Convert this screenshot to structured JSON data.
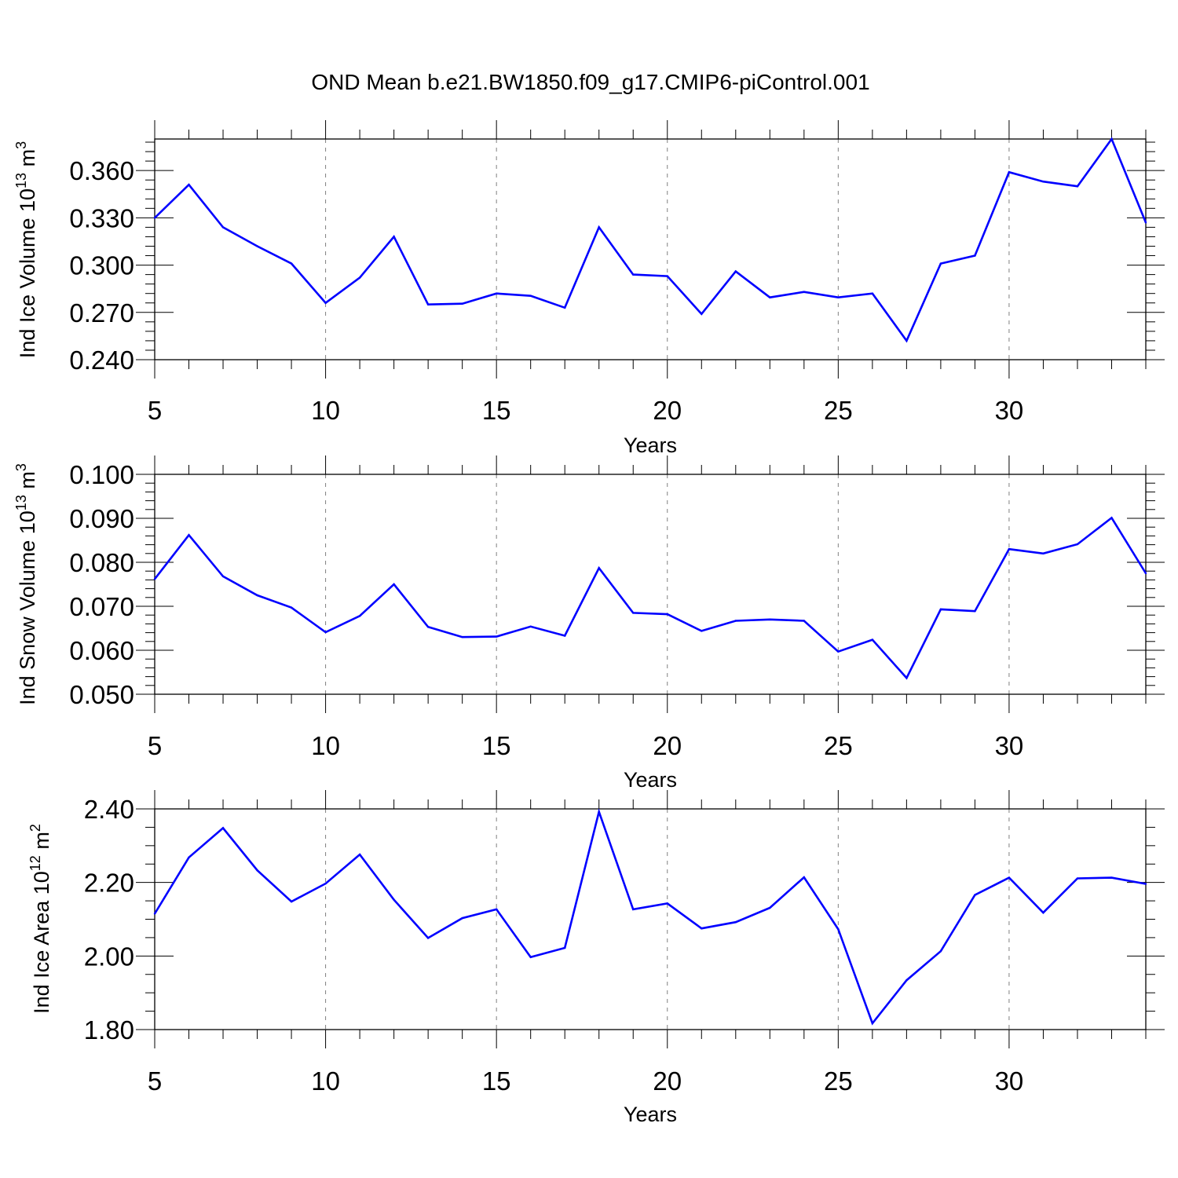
{
  "title": "OND Mean b.e21.BW1850.f09_g17.CMIP6-piControl.001",
  "colors": {
    "series": "#0000ff",
    "axis": "#000000",
    "grid": "#808080"
  },
  "chart_data": [
    {
      "type": "line",
      "xlabel": "Years",
      "ylabel_main": "Ind Ice Volume 10",
      "ylabel_exp": "13",
      "ylabel_unit": " m",
      "ylabel_unit_exp": "3",
      "xlim": [
        5,
        34
      ],
      "ylim": [
        0.24,
        0.38
      ],
      "xticks": [
        5,
        10,
        15,
        20,
        25,
        30
      ],
      "xtick_labels": [
        "5",
        "10",
        "15",
        "20",
        "25",
        "30"
      ],
      "yticks": [
        0.24,
        0.27,
        0.3,
        0.33,
        0.36
      ],
      "ytick_labels": [
        "0.240",
        "0.270",
        "0.300",
        "0.330",
        "0.360"
      ],
      "yminor_step": 0.006,
      "grid": "vertical dashed at major x ticks",
      "x": [
        5,
        6,
        7,
        8,
        9,
        10,
        11,
        12,
        13,
        14,
        15,
        16,
        17,
        18,
        19,
        20,
        21,
        22,
        23,
        24,
        25,
        26,
        27,
        28,
        29,
        30,
        31,
        32,
        33,
        34
      ],
      "values": [
        0.33,
        0.351,
        0.324,
        0.312,
        0.301,
        0.276,
        0.292,
        0.318,
        0.275,
        0.2755,
        0.282,
        0.2805,
        0.273,
        0.324,
        0.294,
        0.293,
        0.269,
        0.296,
        0.2795,
        0.283,
        0.2795,
        0.282,
        0.252,
        0.301,
        0.306,
        0.359,
        0.353,
        0.35,
        0.38,
        0.327
      ]
    },
    {
      "type": "line",
      "xlabel": "Years",
      "ylabel_main": "Ind Snow Volume 10",
      "ylabel_exp": "13",
      "ylabel_unit": " m",
      "ylabel_unit_exp": "3",
      "xlim": [
        5,
        34
      ],
      "ylim": [
        0.05,
        0.1
      ],
      "xticks": [
        5,
        10,
        15,
        20,
        25,
        30
      ],
      "xtick_labels": [
        "5",
        "10",
        "15",
        "20",
        "25",
        "30"
      ],
      "yticks": [
        0.05,
        0.06,
        0.07,
        0.08,
        0.09,
        0.1
      ],
      "ytick_labels": [
        "0.050",
        "0.060",
        "0.070",
        "0.080",
        "0.090",
        "0.100"
      ],
      "yminor_step": 0.002,
      "grid": "vertical dashed at major x ticks",
      "x": [
        5,
        6,
        7,
        8,
        9,
        10,
        11,
        12,
        13,
        14,
        15,
        16,
        17,
        18,
        19,
        20,
        21,
        22,
        23,
        24,
        25,
        26,
        27,
        28,
        29,
        30,
        31,
        32,
        33,
        34
      ],
      "values": [
        0.0762,
        0.0862,
        0.0768,
        0.0725,
        0.0697,
        0.0641,
        0.0678,
        0.075,
        0.0653,
        0.063,
        0.0631,
        0.0654,
        0.0633,
        0.0787,
        0.0685,
        0.0682,
        0.0644,
        0.0667,
        0.067,
        0.0667,
        0.0597,
        0.0624,
        0.0537,
        0.0693,
        0.0689,
        0.083,
        0.082,
        0.0841,
        0.0901,
        0.0775
      ]
    },
    {
      "type": "line",
      "xlabel": "Years",
      "ylabel_main": "Ind Ice Area 10",
      "ylabel_exp": "12",
      "ylabel_unit": " m",
      "ylabel_unit_exp": "2",
      "xlim": [
        5,
        34
      ],
      "ylim": [
        1.8,
        2.4
      ],
      "xticks": [
        5,
        10,
        15,
        20,
        25,
        30
      ],
      "xtick_labels": [
        "5",
        "10",
        "15",
        "20",
        "25",
        "30"
      ],
      "yticks": [
        1.8,
        2.0,
        2.2,
        2.4
      ],
      "ytick_labels": [
        "1.80",
        "2.00",
        "2.20",
        "2.40"
      ],
      "yminor_step": 0.05,
      "grid": "vertical dashed at major x ticks",
      "x": [
        5,
        6,
        7,
        8,
        9,
        10,
        11,
        12,
        13,
        14,
        15,
        16,
        17,
        18,
        19,
        20,
        21,
        22,
        23,
        24,
        25,
        26,
        27,
        28,
        29,
        30,
        31,
        32,
        33,
        34
      ],
      "values": [
        2.115,
        2.268,
        2.348,
        2.233,
        2.148,
        2.197,
        2.276,
        2.153,
        2.049,
        2.103,
        2.127,
        1.997,
        2.022,
        2.392,
        2.127,
        2.143,
        2.075,
        2.092,
        2.131,
        2.214,
        2.073,
        1.817,
        1.934,
        2.013,
        2.166,
        2.213,
        2.118,
        2.211,
        2.213,
        2.196
      ]
    }
  ]
}
